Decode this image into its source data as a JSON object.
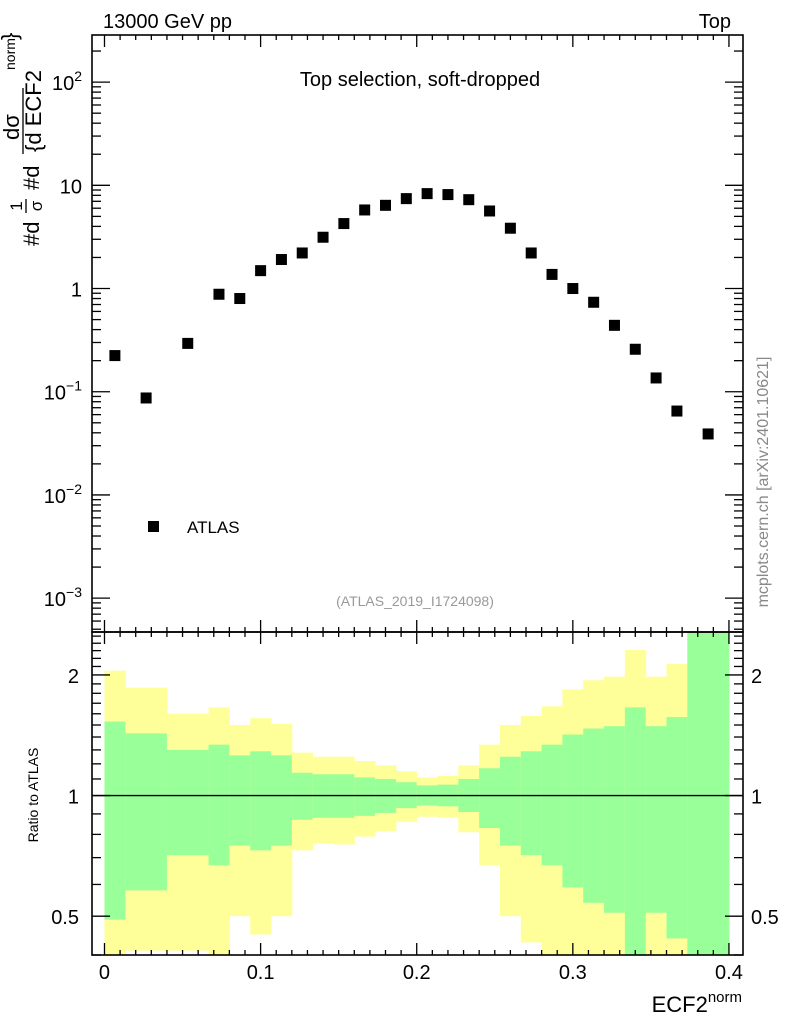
{
  "header": {
    "left_label": "13000 GeV pp",
    "right_label": "Top",
    "plot_title": "Top selection, soft-dropped",
    "analysis_id": "(ATLAS_2019_I1724098)",
    "side_credit": "mcplots.cern.ch [arXiv:2401.10621]"
  },
  "ylabel_parts": {
    "d1": "#d",
    "one": "1",
    "sigma": "σ",
    "d2": "#d",
    "dsigma": "dσ",
    "denom": "{d ECF2",
    "norm": "norm",
    "brace": "}"
  },
  "colors": {
    "yellow": "#ffff99",
    "green": "#99ff99",
    "marker": "#000000",
    "gray_text": "#999999"
  },
  "chart_data": [
    {
      "type": "scatter",
      "title": "Top selection, soft-dropped",
      "xlabel": "ECF2",
      "xlabel_sup": "norm",
      "ylabel": "1/σ dσ/d ECF2^norm",
      "yscale": "log",
      "xlim": [
        -0.008,
        0.409
      ],
      "ylim": [
        0.00047,
        286
      ],
      "yticks": [
        {
          "value": 100,
          "base": "10",
          "exp": "2"
        },
        {
          "value": 10,
          "base": "10",
          "exp": ""
        },
        {
          "value": 1,
          "base": "1",
          "exp": ""
        },
        {
          "value": 0.1,
          "base": "10",
          "exp": "−1"
        },
        {
          "value": 0.01,
          "base": "10",
          "exp": "−2"
        },
        {
          "value": 0.001,
          "base": "10",
          "exp": "−3"
        }
      ],
      "legend": {
        "position": "bottom-left",
        "entries": [
          "ATLAS"
        ]
      },
      "series": [
        {
          "name": "ATLAS",
          "bin_edges_75ths": [
            0,
            1,
            3,
            5,
            6,
            7,
            8,
            9,
            10,
            11,
            12,
            13,
            14,
            15,
            16,
            17,
            18,
            19,
            20,
            21,
            22,
            23,
            24,
            25,
            26,
            27,
            28,
            30
          ],
          "values": [
            0.224,
            0.087,
            0.294,
            0.88,
            0.8,
            1.49,
            1.91,
            2.21,
            3.14,
            4.26,
            5.77,
            6.4,
            7.43,
            8.31,
            8.13,
            7.26,
            5.64,
            3.84,
            2.21,
            1.37,
            1.0,
            0.736,
            0.44,
            0.258,
            0.136,
            0.065,
            0.039
          ]
        }
      ]
    },
    {
      "type": "area",
      "ylabel": "Ratio to ATLAS",
      "yscale": "log",
      "xlim": [
        -0.008,
        0.409
      ],
      "ylim": [
        0.4,
        2.56
      ],
      "yticks": [
        {
          "value": 2,
          "label": "2"
        },
        {
          "value": 1,
          "label": "1"
        },
        {
          "value": 0.5,
          "label": "0.5"
        }
      ],
      "xticks": [
        {
          "value": 0,
          "label": "0"
        },
        {
          "value": 0.1,
          "label": "0.1"
        },
        {
          "value": 0.2,
          "label": "0.2"
        },
        {
          "value": 0.3,
          "label": "0.3"
        },
        {
          "value": 0.4,
          "label": "0.4"
        }
      ],
      "reference_line": 1,
      "bands": {
        "yellow_upper": [
          2.05,
          1.86,
          1.6,
          1.66,
          1.5,
          1.56,
          1.51,
          1.28,
          1.25,
          1.25,
          1.22,
          1.19,
          1.15,
          1.11,
          1.12,
          1.19,
          1.34,
          1.5,
          1.58,
          1.67,
          1.84,
          1.94,
          1.98,
          2.31,
          1.98,
          2.13,
          3.0
        ],
        "green_upper": [
          1.53,
          1.43,
          1.3,
          1.34,
          1.26,
          1.29,
          1.26,
          1.14,
          1.13,
          1.13,
          1.11,
          1.1,
          1.08,
          1.06,
          1.065,
          1.1,
          1.17,
          1.25,
          1.29,
          1.34,
          1.42,
          1.47,
          1.49,
          1.66,
          1.49,
          1.57,
          3.0
        ],
        "green_lower": [
          0.49,
          0.58,
          0.71,
          0.67,
          0.75,
          0.73,
          0.75,
          0.87,
          0.88,
          0.88,
          0.89,
          0.905,
          0.93,
          0.945,
          0.94,
          0.91,
          0.83,
          0.75,
          0.71,
          0.67,
          0.59,
          0.54,
          0.51,
          0.3,
          0.51,
          0.44,
          0.3
        ],
        "yellow_lower": [
          0.3,
          0.41,
          0.41,
          0.3,
          0.5,
          0.45,
          0.5,
          0.73,
          0.76,
          0.755,
          0.79,
          0.815,
          0.86,
          0.885,
          0.88,
          0.81,
          0.67,
          0.5,
          0.43,
          0.3,
          0.3,
          0.3,
          0.3,
          0.3,
          0.3,
          0.3,
          0.3
        ]
      }
    }
  ]
}
